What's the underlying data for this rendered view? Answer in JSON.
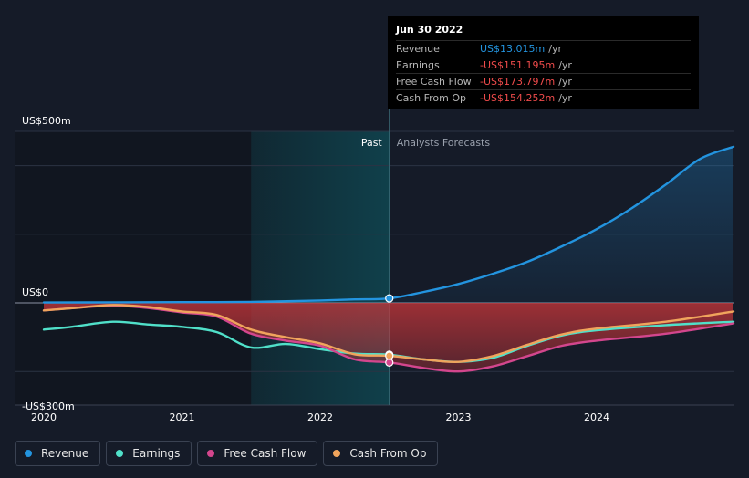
{
  "chart_data": {
    "type": "line",
    "x_ticks": [
      2020,
      2021,
      2022,
      2023,
      2024
    ],
    "x_range": [
      2019.8,
      2024.99
    ],
    "y_range": [
      -300,
      500
    ],
    "y_labels": [
      {
        "value": 500,
        "text": "US$500m"
      },
      {
        "value": 0,
        "text": "US$0"
      },
      {
        "value": -300,
        "text": "-US$300m"
      }
    ],
    "gridlines": [
      500,
      400,
      200,
      0,
      -200
    ],
    "past_label": "Past",
    "forecast_label": "Analysts Forecasts",
    "divider_x": 2022.5,
    "shade_start_x": 2021.5,
    "series": [
      {
        "name": "Revenue",
        "color": "#2394df",
        "points": [
          [
            2020,
            1
          ],
          [
            2020.5,
            1.5
          ],
          [
            2021,
            2
          ],
          [
            2021.5,
            3
          ],
          [
            2022,
            7
          ],
          [
            2022.25,
            10
          ],
          [
            2022.5,
            13.015
          ],
          [
            2022.75,
            32
          ],
          [
            2023,
            55
          ],
          [
            2023.25,
            85
          ],
          [
            2023.5,
            120
          ],
          [
            2023.75,
            165
          ],
          [
            2024,
            215
          ],
          [
            2024.25,
            275
          ],
          [
            2024.5,
            345
          ],
          [
            2024.75,
            420
          ],
          [
            2024.99,
            455
          ]
        ]
      },
      {
        "name": "Earnings",
        "color": "#50e0c9",
        "points": [
          [
            2020,
            -78
          ],
          [
            2020.2,
            -70
          ],
          [
            2020.5,
            -55
          ],
          [
            2020.75,
            -63
          ],
          [
            2021,
            -70
          ],
          [
            2021.25,
            -85
          ],
          [
            2021.5,
            -130
          ],
          [
            2021.75,
            -120
          ],
          [
            2022,
            -135
          ],
          [
            2022.25,
            -148
          ],
          [
            2022.5,
            -151.195
          ],
          [
            2022.75,
            -165
          ],
          [
            2023,
            -172
          ],
          [
            2023.25,
            -160
          ],
          [
            2023.5,
            -125
          ],
          [
            2023.75,
            -95
          ],
          [
            2024,
            -80
          ],
          [
            2024.5,
            -65
          ],
          [
            2024.99,
            -55
          ]
        ]
      },
      {
        "name": "Free Cash Flow",
        "color": "#d3468d",
        "points": [
          [
            2020,
            -22
          ],
          [
            2020.25,
            -14
          ],
          [
            2020.5,
            -8
          ],
          [
            2020.75,
            -15
          ],
          [
            2021,
            -28
          ],
          [
            2021.25,
            -40
          ],
          [
            2021.5,
            -90
          ],
          [
            2021.75,
            -110
          ],
          [
            2022,
            -125
          ],
          [
            2022.25,
            -165
          ],
          [
            2022.5,
            -173.797
          ],
          [
            2022.75,
            -190
          ],
          [
            2023,
            -200
          ],
          [
            2023.25,
            -185
          ],
          [
            2023.5,
            -155
          ],
          [
            2023.75,
            -125
          ],
          [
            2024,
            -110
          ],
          [
            2024.5,
            -90
          ],
          [
            2024.99,
            -60
          ]
        ]
      },
      {
        "name": "Cash From Op",
        "color": "#f0a45c",
        "points": [
          [
            2020,
            -22
          ],
          [
            2020.25,
            -14
          ],
          [
            2020.5,
            -6
          ],
          [
            2020.75,
            -12
          ],
          [
            2021,
            -25
          ],
          [
            2021.25,
            -35
          ],
          [
            2021.5,
            -78
          ],
          [
            2021.75,
            -100
          ],
          [
            2022,
            -118
          ],
          [
            2022.25,
            -150
          ],
          [
            2022.5,
            -154.252
          ],
          [
            2022.75,
            -165
          ],
          [
            2023,
            -172
          ],
          [
            2023.25,
            -155
          ],
          [
            2023.5,
            -122
          ],
          [
            2023.75,
            -92
          ],
          [
            2024,
            -75
          ],
          [
            2024.5,
            -55
          ],
          [
            2024.99,
            -25
          ]
        ]
      }
    ]
  },
  "tooltip": {
    "date": "Jun 30 2022",
    "unit": "/yr",
    "rows": [
      {
        "label": "Revenue",
        "value": "US$13.015m",
        "color": "#2394df"
      },
      {
        "label": "Earnings",
        "value": "-US$151.195m",
        "color": "#ef4b4b"
      },
      {
        "label": "Free Cash Flow",
        "value": "-US$173.797m",
        "color": "#ef4b4b"
      },
      {
        "label": "Cash From Op",
        "value": "-US$154.252m",
        "color": "#ef4b4b"
      }
    ]
  },
  "legend": [
    {
      "label": "Revenue",
      "color": "#2394df"
    },
    {
      "label": "Earnings",
      "color": "#50e0c9"
    },
    {
      "label": "Free Cash Flow",
      "color": "#d3468d"
    },
    {
      "label": "Cash From Op",
      "color": "#f0a45c"
    }
  ]
}
